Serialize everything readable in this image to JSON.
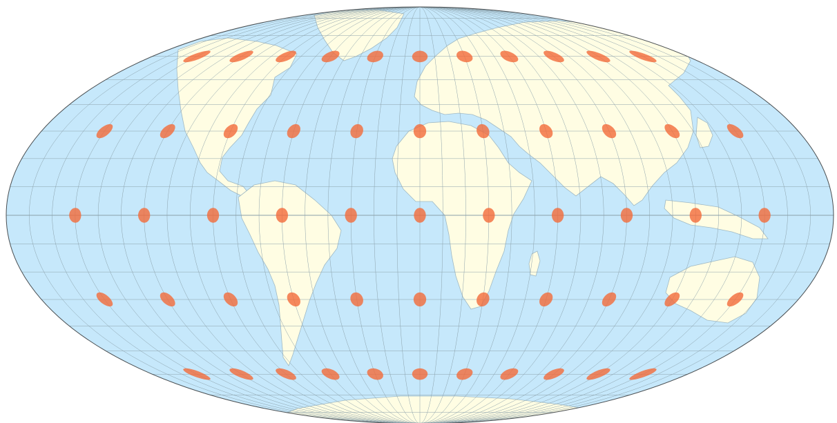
{
  "map": {
    "projection": "Mollweide",
    "colors": {
      "ocean": "#c6e8fb",
      "land": "#fffde3",
      "coastline": "#9fb9c4",
      "graticule": "#8aa0aa",
      "outline": "#4a4f52",
      "indicatrix": "#f26a3a"
    },
    "graticule_step_deg": 10,
    "indicatrix": {
      "latitudes": [
        60,
        30,
        0,
        -30,
        -60
      ],
      "longitudes": [
        -150,
        -120,
        -90,
        -60,
        -30,
        0,
        30,
        60,
        90,
        120,
        150
      ],
      "opacity": 0.8
    }
  }
}
